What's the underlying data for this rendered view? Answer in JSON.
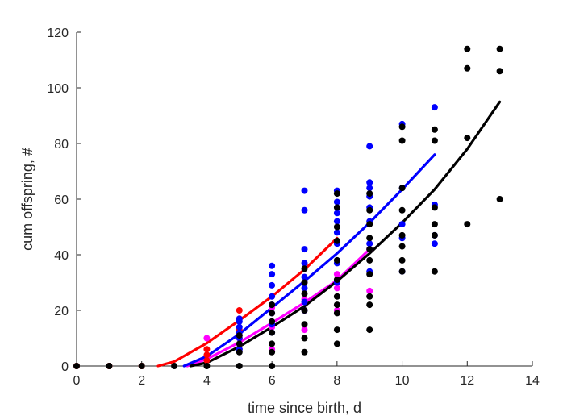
{
  "chart_data": {
    "type": "scatter",
    "xlabel": "time since birth, d",
    "ylabel": "cum offspring, #",
    "xlim": [
      0,
      14
    ],
    "ylim": [
      0,
      120
    ],
    "xticks": [
      "0",
      "2",
      "4",
      "6",
      "8",
      "10",
      "12",
      "14"
    ],
    "yticks": [
      "0",
      "20",
      "40",
      "60",
      "80",
      "100",
      "120"
    ],
    "grid": false,
    "legend": "none",
    "series": [
      {
        "color": "#ff0000",
        "points": [
          [
            4,
            2
          ],
          [
            4,
            4
          ],
          [
            4,
            6
          ],
          [
            5,
            6
          ],
          [
            5,
            10
          ],
          [
            5,
            13
          ],
          [
            5,
            17
          ],
          [
            5,
            20
          ],
          [
            0,
            0
          ],
          [
            1,
            0
          ],
          [
            2,
            0
          ]
        ],
        "fit": [
          [
            2.5,
            0
          ],
          [
            3,
            1.6
          ],
          [
            4,
            8.2
          ],
          [
            5,
            16.4
          ],
          [
            6,
            25
          ],
          [
            7,
            34.7
          ],
          [
            8,
            46
          ]
        ]
      },
      {
        "color": "#ff00ff",
        "points": [
          [
            4,
            10
          ],
          [
            5,
            8
          ],
          [
            5,
            11
          ],
          [
            6,
            6
          ],
          [
            6,
            14
          ],
          [
            6,
            21
          ],
          [
            7,
            13
          ],
          [
            7,
            20
          ],
          [
            7,
            24
          ],
          [
            7,
            30
          ],
          [
            8,
            20
          ],
          [
            8,
            28
          ],
          [
            8,
            33
          ],
          [
            9,
            27
          ],
          [
            9,
            42
          ]
        ],
        "fit": [
          [
            3.4,
            0
          ],
          [
            4,
            2.5
          ],
          [
            5,
            8.5
          ],
          [
            6,
            15.5
          ],
          [
            7,
            22.8
          ],
          [
            8,
            30.8
          ],
          [
            9,
            42
          ]
        ]
      },
      {
        "color": "#0000ff",
        "points": [
          [
            5,
            6
          ],
          [
            5,
            10
          ],
          [
            5,
            12
          ],
          [
            5,
            14
          ],
          [
            5,
            16
          ],
          [
            5,
            17
          ],
          [
            6,
            12
          ],
          [
            6,
            15
          ],
          [
            6,
            19
          ],
          [
            6,
            22
          ],
          [
            6,
            25
          ],
          [
            6,
            29
          ],
          [
            6,
            33
          ],
          [
            6,
            36
          ],
          [
            7,
            20
          ],
          [
            7,
            23
          ],
          [
            7,
            28
          ],
          [
            7,
            32
          ],
          [
            7,
            37
          ],
          [
            7,
            42
          ],
          [
            7,
            56
          ],
          [
            7,
            63
          ],
          [
            8,
            30
          ],
          [
            8,
            37
          ],
          [
            8,
            44
          ],
          [
            8,
            48
          ],
          [
            8,
            52
          ],
          [
            8,
            55
          ],
          [
            8,
            59
          ],
          [
            8,
            63
          ],
          [
            9,
            34
          ],
          [
            9,
            44
          ],
          [
            9,
            52
          ],
          [
            9,
            57
          ],
          [
            9,
            61
          ],
          [
            9,
            64
          ],
          [
            9,
            66
          ],
          [
            9,
            79
          ],
          [
            10,
            34
          ],
          [
            10,
            46
          ],
          [
            10,
            51
          ],
          [
            10,
            64
          ],
          [
            10,
            87
          ],
          [
            11,
            44
          ],
          [
            11,
            47
          ],
          [
            11,
            58
          ],
          [
            11,
            93
          ]
        ],
        "fit": [
          [
            3.3,
            0
          ],
          [
            4,
            3.5
          ],
          [
            5,
            11.5
          ],
          [
            6,
            21
          ],
          [
            7,
            30.5
          ],
          [
            8,
            40.5
          ],
          [
            9,
            51.5
          ],
          [
            10,
            63.5
          ],
          [
            11,
            76
          ]
        ]
      },
      {
        "color": "#000000",
        "points": [
          [
            0,
            0
          ],
          [
            1,
            0
          ],
          [
            2,
            0
          ],
          [
            3,
            0
          ],
          [
            4,
            0
          ],
          [
            5,
            0
          ],
          [
            5,
            5
          ],
          [
            5,
            8
          ],
          [
            5,
            11
          ],
          [
            6,
            0
          ],
          [
            6,
            5
          ],
          [
            6,
            8
          ],
          [
            6,
            12
          ],
          [
            6,
            16
          ],
          [
            6,
            19
          ],
          [
            6,
            22
          ],
          [
            7,
            5
          ],
          [
            7,
            10
          ],
          [
            7,
            15
          ],
          [
            7,
            20
          ],
          [
            7,
            26
          ],
          [
            7,
            30
          ],
          [
            7,
            35
          ],
          [
            8,
            8
          ],
          [
            8,
            13
          ],
          [
            8,
            19
          ],
          [
            8,
            22
          ],
          [
            8,
            25
          ],
          [
            8,
            31
          ],
          [
            8,
            38
          ],
          [
            8,
            45
          ],
          [
            8,
            50
          ],
          [
            8,
            57
          ],
          [
            8,
            62
          ],
          [
            9,
            13
          ],
          [
            9,
            22
          ],
          [
            9,
            25
          ],
          [
            9,
            33
          ],
          [
            9,
            38
          ],
          [
            9,
            42
          ],
          [
            9,
            46
          ],
          [
            9,
            51
          ],
          [
            9,
            56
          ],
          [
            9,
            62
          ],
          [
            10,
            34
          ],
          [
            10,
            38
          ],
          [
            10,
            43
          ],
          [
            10,
            47
          ],
          [
            10,
            56
          ],
          [
            10,
            64
          ],
          [
            10,
            81
          ],
          [
            10,
            86
          ],
          [
            11,
            34
          ],
          [
            11,
            47
          ],
          [
            11,
            51
          ],
          [
            11,
            57
          ],
          [
            11,
            81
          ],
          [
            11,
            85
          ],
          [
            12,
            51
          ],
          [
            12,
            82
          ],
          [
            12,
            107
          ],
          [
            12,
            114
          ],
          [
            13,
            60
          ],
          [
            13,
            106
          ],
          [
            13,
            114
          ]
        ],
        "fit": [
          [
            3.5,
            0
          ],
          [
            4,
            1.2
          ],
          [
            5,
            7
          ],
          [
            6,
            14
          ],
          [
            7,
            21.5
          ],
          [
            8,
            30.5
          ],
          [
            9,
            40.5
          ],
          [
            10,
            51.5
          ],
          [
            11,
            63.5
          ],
          [
            12,
            78
          ],
          [
            13,
            95
          ]
        ]
      }
    ]
  }
}
